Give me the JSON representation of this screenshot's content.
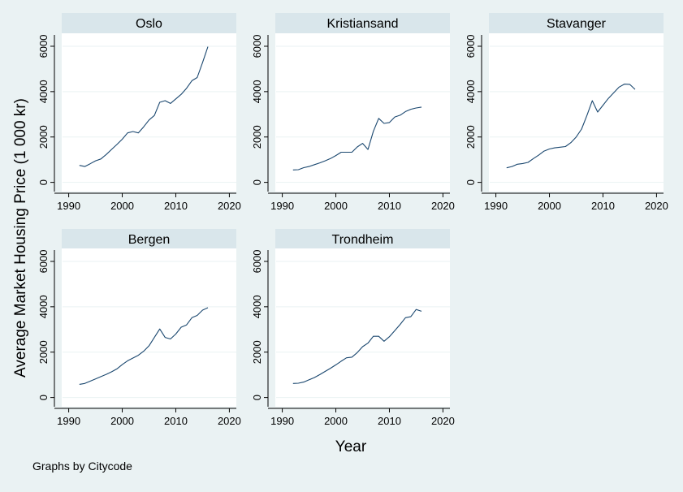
{
  "figure": {
    "ylabel": "Average Market Housing Price (1 000 kr)",
    "xlabel": "Year",
    "note": "Graphs by Citycode"
  },
  "colors": {
    "background": "#eaf2f3",
    "plot_background": "#ffffff",
    "header": "#d9e6eb",
    "line": "#1a476f",
    "grid": "#eaf2f3",
    "axis": "#000000"
  },
  "chart_data": [
    {
      "type": "line",
      "title": "Oslo",
      "x_ticks": [
        "1990",
        "2000",
        "2010",
        "2020"
      ],
      "y_ticks": [
        "0",
        "2000",
        "4000",
        "6000"
      ],
      "xlim": [
        1989,
        2021
      ],
      "ylim": [
        -300,
        6500
      ],
      "grid": true,
      "series": [
        {
          "x": [
            1992,
            1993,
            1994,
            1995,
            1996,
            1997,
            1998,
            1999,
            2000,
            2001,
            2002,
            2003,
            2004,
            2005,
            2006,
            2007,
            2008,
            2009,
            2010,
            2011,
            2012,
            2013,
            2014,
            2015,
            2016
          ],
          "values": [
            750,
            700,
            820,
            950,
            1030,
            1230,
            1450,
            1670,
            1900,
            2180,
            2240,
            2180,
            2450,
            2750,
            2950,
            3530,
            3600,
            3480,
            3680,
            3880,
            4150,
            4480,
            4620,
            5280,
            5980
          ]
        }
      ]
    },
    {
      "type": "line",
      "title": "Kristiansand",
      "x_ticks": [
        "1990",
        "2000",
        "2010",
        "2020"
      ],
      "y_ticks": [
        "0",
        "2000",
        "4000",
        "6000"
      ],
      "xlim": [
        1989,
        2021
      ],
      "ylim": [
        -300,
        6500
      ],
      "grid": true,
      "series": [
        {
          "x": [
            1992,
            1993,
            1994,
            1995,
            1996,
            1997,
            1998,
            1999,
            2000,
            2001,
            2002,
            2003,
            2004,
            2005,
            2006,
            2007,
            2008,
            2009,
            2010,
            2011,
            2012,
            2013,
            2014,
            2015,
            2016
          ],
          "values": [
            550,
            560,
            650,
            700,
            780,
            860,
            950,
            1050,
            1180,
            1330,
            1330,
            1330,
            1560,
            1720,
            1450,
            2250,
            2820,
            2600,
            2640,
            2880,
            2960,
            3120,
            3220,
            3280,
            3320
          ]
        }
      ]
    },
    {
      "type": "line",
      "title": "Stavanger",
      "x_ticks": [
        "1990",
        "2000",
        "2010",
        "2020"
      ],
      "y_ticks": [
        "0",
        "2000",
        "4000",
        "6000"
      ],
      "xlim": [
        1989,
        2021
      ],
      "ylim": [
        -300,
        6500
      ],
      "grid": true,
      "series": [
        {
          "x": [
            1992,
            1993,
            1994,
            1995,
            1996,
            1997,
            1998,
            1999,
            2000,
            2001,
            2002,
            2003,
            2004,
            2005,
            2006,
            2007,
            2008,
            2009,
            2010,
            2011,
            2012,
            2013,
            2014,
            2015,
            2016
          ],
          "values": [
            640,
            700,
            800,
            830,
            880,
            1050,
            1200,
            1380,
            1470,
            1520,
            1550,
            1580,
            1750,
            2000,
            2350,
            2950,
            3600,
            3100,
            3400,
            3700,
            3950,
            4200,
            4330,
            4320,
            4100
          ]
        }
      ]
    },
    {
      "type": "line",
      "title": "Bergen",
      "x_ticks": [
        "1990",
        "2000",
        "2010",
        "2020"
      ],
      "y_ticks": [
        "0",
        "2000",
        "4000",
        "6000"
      ],
      "xlim": [
        1989,
        2021
      ],
      "ylim": [
        -300,
        6500
      ],
      "grid": true,
      "series": [
        {
          "x": [
            1992,
            1993,
            1994,
            1995,
            1996,
            1997,
            1998,
            1999,
            2000,
            2001,
            2002,
            2003,
            2004,
            2005,
            2006,
            2007,
            2008,
            2009,
            2010,
            2011,
            2012,
            2013,
            2014,
            2015,
            2016
          ],
          "values": [
            580,
            620,
            720,
            820,
            920,
            1020,
            1130,
            1260,
            1450,
            1620,
            1740,
            1860,
            2040,
            2280,
            2650,
            3020,
            2650,
            2580,
            2800,
            3100,
            3200,
            3520,
            3620,
            3850,
            3960
          ]
        }
      ]
    },
    {
      "type": "line",
      "title": "Trondheim",
      "x_ticks": [
        "1990",
        "2000",
        "2010",
        "2020"
      ],
      "y_ticks": [
        "0",
        "2000",
        "4000",
        "6000"
      ],
      "xlim": [
        1989,
        2021
      ],
      "ylim": [
        -300,
        6500
      ],
      "grid": true,
      "series": [
        {
          "x": [
            1992,
            1993,
            1994,
            1995,
            1996,
            1997,
            1998,
            1999,
            2000,
            2001,
            2002,
            2003,
            2004,
            2005,
            2006,
            2007,
            2008,
            2009,
            2010,
            2011,
            2012,
            2013,
            2014,
            2015,
            2016
          ],
          "values": [
            620,
            630,
            680,
            780,
            880,
            1010,
            1150,
            1290,
            1440,
            1600,
            1750,
            1780,
            1980,
            2240,
            2400,
            2700,
            2700,
            2480,
            2680,
            2950,
            3220,
            3520,
            3560,
            3880,
            3800
          ]
        }
      ]
    }
  ]
}
